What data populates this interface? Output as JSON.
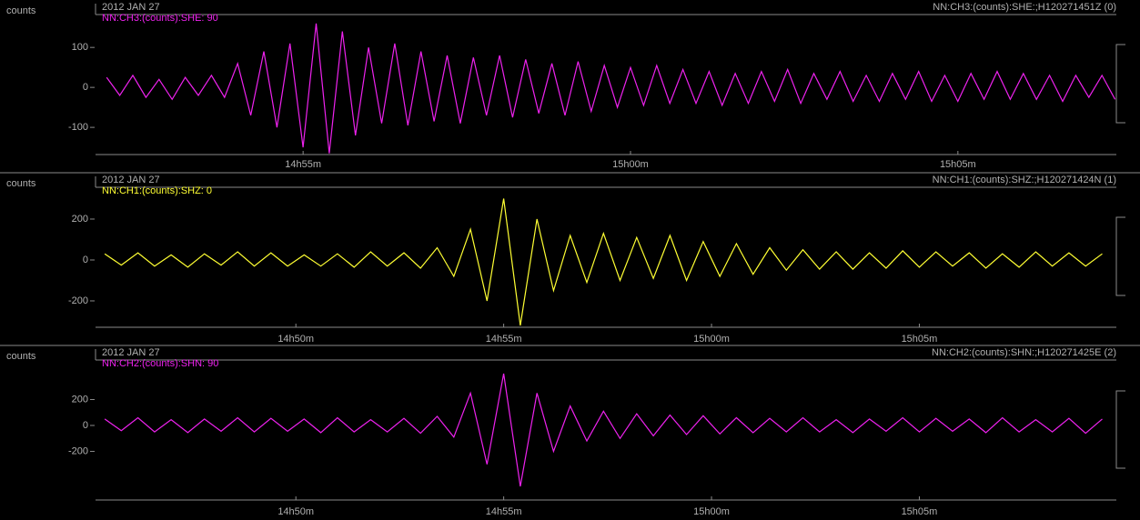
{
  "chart_data": [
    {
      "type": "line",
      "title": "2012 JAN 27",
      "subtitle": "NN:CH3:(counts):SHE:;H120271451Z (0)",
      "y_label": "counts",
      "x": [
        892,
        892.2,
        892.4,
        892.6,
        892.8,
        893,
        893.2,
        893.4,
        893.6,
        893.8,
        894,
        894.2,
        894.4,
        894.6,
        894.8,
        895,
        895.2,
        895.4,
        895.6,
        895.8,
        896,
        896.2,
        896.4,
        896.6,
        896.8,
        897,
        897.2,
        897.4,
        897.6,
        897.8,
        898,
        898.2,
        898.4,
        898.6,
        898.8,
        899,
        899.2,
        899.4,
        899.6,
        899.8,
        900,
        900.2,
        900.4,
        900.6,
        900.8,
        901,
        901.2,
        901.4,
        901.6,
        901.8,
        902,
        902.2,
        902.4,
        902.6,
        902.8,
        903,
        903.2,
        903.4,
        903.6,
        903.8,
        904,
        904.2,
        904.4,
        904.6,
        904.8,
        905,
        905.2,
        905.4,
        905.6,
        905.8,
        906,
        906.2,
        906.4,
        906.6,
        906.8,
        907,
        907.2,
        907.4
      ],
      "series": [
        {
          "name": "NN:CH3:(counts):SHE: 90",
          "color": "#ee22ee",
          "values": [
            25,
            -20,
            30,
            -25,
            20,
            -30,
            25,
            -20,
            30,
            -25,
            60,
            -70,
            90,
            -100,
            110,
            -150,
            160,
            -165,
            140,
            -120,
            100,
            -90,
            110,
            -95,
            90,
            -85,
            80,
            -90,
            75,
            -70,
            80,
            -75,
            70,
            -65,
            60,
            -70,
            65,
            -60,
            55,
            -50,
            50,
            -45,
            55,
            -40,
            45,
            -40,
            40,
            -45,
            35,
            -40,
            40,
            -35,
            45,
            -40,
            35,
            -30,
            40,
            -35,
            30,
            -35,
            35,
            -30,
            40,
            -35,
            30,
            -35,
            35,
            -30,
            40,
            -30,
            35,
            -30,
            30,
            -35,
            30,
            -25,
            30,
            -30
          ]
        }
      ],
      "xlim": [
        891.83,
        907.42
      ],
      "ylim": [
        -168,
        180
      ],
      "xticks": [
        {
          "value": 895,
          "label": "14h55m"
        },
        {
          "value": 900,
          "label": "15h00m"
        },
        {
          "value": 905,
          "label": "15h05m"
        }
      ],
      "yticks": [
        100,
        0,
        -100
      ]
    },
    {
      "type": "line",
      "title": "2012 JAN 27",
      "subtitle": "NN:CH1:(counts):SHZ:;H120271424N (1)",
      "y_label": "counts",
      "x": [
        885.4,
        885.8,
        886.2,
        886.6,
        887,
        887.4,
        887.8,
        888.2,
        888.6,
        889,
        889.4,
        889.8,
        890.2,
        890.6,
        891,
        891.4,
        891.8,
        892.2,
        892.6,
        893,
        893.4,
        893.8,
        894.2,
        894.6,
        895,
        895.4,
        895.8,
        896.2,
        896.6,
        897,
        897.4,
        897.8,
        898.2,
        898.6,
        899,
        899.4,
        899.8,
        900.2,
        900.6,
        901,
        901.4,
        901.8,
        902.2,
        902.6,
        903,
        903.4,
        903.8,
        904.2,
        904.6,
        905,
        905.4,
        905.8,
        906.2,
        906.6,
        907,
        907.4,
        907.8,
        908.2,
        908.6,
        909,
        909.4
      ],
      "series": [
        {
          "name": "NN:CH1:(counts):SHZ: 0",
          "color": "#ffff33",
          "values": [
            30,
            -25,
            35,
            -30,
            25,
            -35,
            30,
            -25,
            40,
            -30,
            35,
            -30,
            25,
            -30,
            30,
            -35,
            40,
            -30,
            35,
            -40,
            60,
            -80,
            150,
            -200,
            300,
            -320,
            200,
            -150,
            120,
            -110,
            130,
            -100,
            110,
            -90,
            120,
            -100,
            90,
            -80,
            80,
            -70,
            60,
            -50,
            50,
            -45,
            40,
            -45,
            35,
            -40,
            45,
            -35,
            40,
            -30,
            35,
            -40,
            30,
            -35,
            40,
            -30,
            35,
            -30,
            30
          ]
        }
      ],
      "xlim": [
        885.18,
        909.74
      ],
      "ylim": [
        -329,
        351
      ],
      "xticks": [
        {
          "value": 890,
          "label": "14h50m"
        },
        {
          "value": 895,
          "label": "14h55m"
        },
        {
          "value": 900,
          "label": "15h00m"
        },
        {
          "value": 905,
          "label": "15h05m"
        }
      ],
      "yticks": [
        200,
        0,
        -200
      ]
    },
    {
      "type": "line",
      "title": "2012 JAN 27",
      "subtitle": "NN:CH2:(counts):SHN:;H120271425E (2)",
      "y_label": "counts",
      "x": [
        885.4,
        885.8,
        886.2,
        886.6,
        887,
        887.4,
        887.8,
        888.2,
        888.6,
        889,
        889.4,
        889.8,
        890.2,
        890.6,
        891,
        891.4,
        891.8,
        892.2,
        892.6,
        893,
        893.4,
        893.8,
        894.2,
        894.6,
        895,
        895.4,
        895.8,
        896.2,
        896.6,
        897,
        897.4,
        897.8,
        898.2,
        898.6,
        899,
        899.4,
        899.8,
        900.2,
        900.6,
        901,
        901.4,
        901.8,
        902.2,
        902.6,
        903,
        903.4,
        903.8,
        904.2,
        904.6,
        905,
        905.4,
        905.8,
        906.2,
        906.6,
        907,
        907.4,
        907.8,
        908.2,
        908.6,
        909,
        909.4
      ],
      "series": [
        {
          "name": "NN:CH2:(counts):SHN: 90",
          "color": "#ee22ee",
          "values": [
            50,
            -40,
            60,
            -50,
            45,
            -55,
            50,
            -45,
            60,
            -50,
            55,
            -45,
            50,
            -55,
            60,
            -50,
            45,
            -50,
            55,
            -60,
            70,
            -90,
            250,
            -300,
            400,
            -470,
            250,
            -200,
            150,
            -120,
            110,
            -100,
            90,
            -80,
            80,
            -70,
            75,
            -65,
            60,
            -55,
            55,
            -50,
            60,
            -50,
            45,
            -55,
            50,
            -45,
            60,
            -50,
            55,
            -45,
            50,
            -55,
            60,
            -50,
            45,
            -50,
            55,
            -60,
            50
          ]
        }
      ],
      "xlim": [
        885.18,
        909.74
      ],
      "ylim": [
        -575,
        491
      ],
      "xticks": [
        {
          "value": 890,
          "label": "14h50m"
        },
        {
          "value": 895,
          "label": "14h55m"
        },
        {
          "value": 900,
          "label": "15h00m"
        },
        {
          "value": 905,
          "label": "15h05m"
        }
      ],
      "yticks": [
        200,
        0,
        -200
      ]
    }
  ]
}
